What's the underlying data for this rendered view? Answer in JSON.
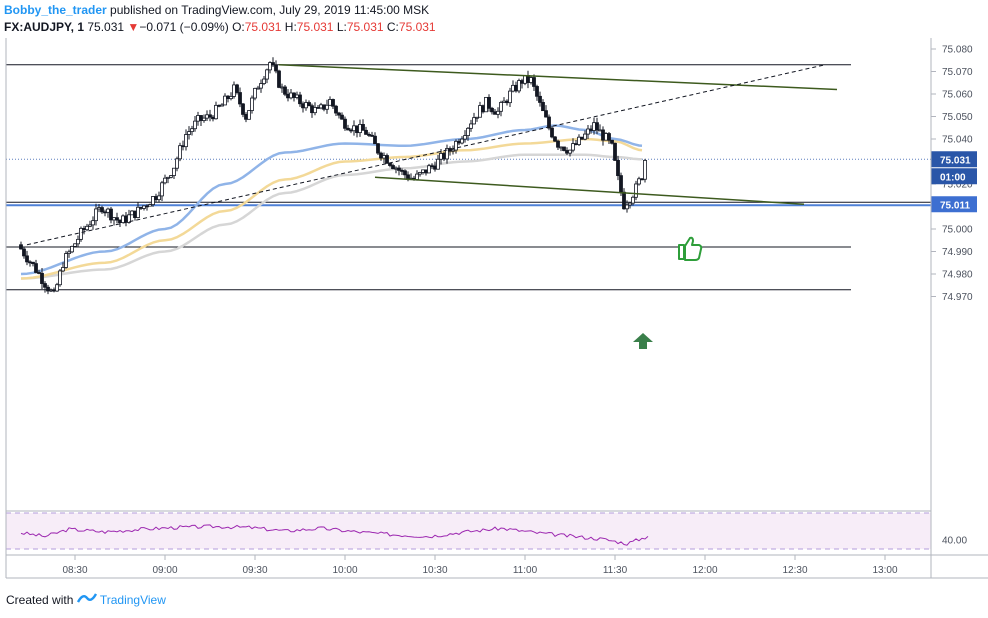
{
  "header": {
    "author": "Bobby_the_trader",
    "published_text": "published on TradingView.com, July 29, 2019 11:45:00 MSK",
    "symbol": "FX:AUDJPY, 1",
    "last_price": "75.031",
    "down_arrow": "▼",
    "change": "−0.071 (−0.09%)",
    "o_label": "O:",
    "o_value": "75.031",
    "h_label": "H:",
    "h_value": "75.031",
    "l_label": "L:",
    "l_value": "75.031",
    "c_label": "C:",
    "c_value": "75.031"
  },
  "footer": {
    "created_with": "Created with",
    "brand": "TradingView"
  },
  "colors": {
    "up_candle": "#ffffff",
    "down_candle": "#131722",
    "channel": "#3d5a1e",
    "ma_blue": "#90b4e8",
    "ma_yellow": "#f3d998",
    "ma_gray": "#d6d6d6",
    "support": "#4f81d8",
    "rsi": "#9c27b0",
    "rsi_bg": "#f3e5f5",
    "arrow": "#3a7f4a",
    "thumb": "#2e9e3a"
  },
  "chart_data": {
    "type": "candlestick",
    "symbol": "FX:AUDJPY",
    "timeframe": "1",
    "x_ticks": [
      "08:30",
      "09:00",
      "09:30",
      "10:00",
      "10:30",
      "11:00",
      "11:30",
      "12:00",
      "12:30",
      "13:00"
    ],
    "y_ticks": [
      "75.080",
      "75.070",
      "75.060",
      "75.050",
      "75.040",
      "75.020",
      "75.010",
      "75.000",
      "74.990",
      "74.980",
      "74.970"
    ],
    "ylim": [
      74.963,
      75.085
    ],
    "price_labels": {
      "current": "75.031",
      "countdown": "01:00",
      "support": "75.011"
    },
    "candle_path": [
      [
        "08:12",
        74.993
      ],
      [
        "08:18",
        74.982
      ],
      [
        "08:24",
        74.97
      ],
      [
        "08:27",
        74.985
      ],
      [
        "08:33",
        74.998
      ],
      [
        "08:40",
        75.01
      ],
      [
        "08:46",
        75.003
      ],
      [
        "08:52",
        75.008
      ],
      [
        "08:58",
        75.015
      ],
      [
        "09:04",
        75.028
      ],
      [
        "09:08",
        75.042
      ],
      [
        "09:12",
        75.048
      ],
      [
        "09:16",
        75.05
      ],
      [
        "09:20",
        75.055
      ],
      [
        "09:24",
        75.062
      ],
      [
        "09:28",
        75.05
      ],
      [
        "09:32",
        75.064
      ],
      [
        "09:36",
        75.074
      ],
      [
        "09:40",
        75.062
      ],
      [
        "09:44",
        75.058
      ],
      [
        "09:48",
        75.055
      ],
      [
        "09:52",
        75.052
      ],
      [
        "09:56",
        75.057
      ],
      [
        "10:00",
        75.048
      ],
      [
        "10:04",
        75.045
      ],
      [
        "10:08",
        75.043
      ],
      [
        "10:12",
        75.035
      ],
      [
        "10:16",
        75.03
      ],
      [
        "10:20",
        75.025
      ],
      [
        "10:24",
        75.022
      ],
      [
        "10:28",
        75.026
      ],
      [
        "10:32",
        75.03
      ],
      [
        "10:36",
        75.035
      ],
      [
        "10:40",
        75.042
      ],
      [
        "10:44",
        75.05
      ],
      [
        "10:48",
        75.056
      ],
      [
        "10:52",
        75.052
      ],
      [
        "10:56",
        75.06
      ],
      [
        "11:00",
        75.066
      ],
      [
        "11:03",
        75.066
      ],
      [
        "11:06",
        75.055
      ],
      [
        "11:09",
        75.045
      ],
      [
        "11:12",
        75.038
      ],
      [
        "11:16",
        75.035
      ],
      [
        "11:20",
        75.04
      ],
      [
        "11:24",
        75.046
      ],
      [
        "11:28",
        75.04
      ],
      [
        "11:30",
        75.036
      ],
      [
        "11:32",
        75.022
      ],
      [
        "11:34",
        75.011
      ],
      [
        "11:36",
        75.014
      ],
      [
        "11:38",
        75.018
      ],
      [
        "11:40",
        75.024
      ],
      [
        "11:41",
        75.031
      ]
    ],
    "ma_blue": [
      [
        "08:12",
        74.98
      ],
      [
        "08:40",
        74.99
      ],
      [
        "09:00",
        75.0
      ],
      [
        "09:20",
        75.02
      ],
      [
        "09:40",
        75.034
      ],
      [
        "10:00",
        75.038
      ],
      [
        "10:20",
        75.037
      ],
      [
        "10:40",
        75.04
      ],
      [
        "11:00",
        75.044
      ],
      [
        "11:10",
        75.046
      ],
      [
        "11:20",
        75.044
      ],
      [
        "11:30",
        75.04
      ],
      [
        "11:39",
        75.037
      ]
    ],
    "ma_yellow": [
      [
        "08:12",
        74.978
      ],
      [
        "08:40",
        74.985
      ],
      [
        "09:00",
        74.995
      ],
      [
        "09:20",
        75.008
      ],
      [
        "09:40",
        75.022
      ],
      [
        "10:00",
        75.03
      ],
      [
        "10:20",
        75.032
      ],
      [
        "10:40",
        75.035
      ],
      [
        "11:00",
        75.038
      ],
      [
        "11:20",
        75.04
      ],
      [
        "11:30",
        75.039
      ],
      [
        "11:39",
        75.035
      ]
    ],
    "ma_gray": [
      [
        "08:12",
        74.978
      ],
      [
        "08:40",
        74.982
      ],
      [
        "09:00",
        74.99
      ],
      [
        "09:20",
        75.002
      ],
      [
        "09:40",
        75.016
      ],
      [
        "10:00",
        75.024
      ],
      [
        "10:20",
        75.027
      ],
      [
        "10:40",
        75.03
      ],
      [
        "11:00",
        75.033
      ],
      [
        "11:20",
        75.033
      ],
      [
        "11:30",
        75.032
      ],
      [
        "11:39",
        75.031
      ]
    ],
    "rsi_path": [
      [
        "08:12",
        48
      ],
      [
        "08:20",
        44
      ],
      [
        "08:28",
        52
      ],
      [
        "08:40",
        49
      ],
      [
        "08:52",
        52
      ],
      [
        "09:04",
        54
      ],
      [
        "09:16",
        55
      ],
      [
        "09:28",
        54
      ],
      [
        "09:40",
        50
      ],
      [
        "09:52",
        53
      ],
      [
        "10:04",
        49
      ],
      [
        "10:16",
        46
      ],
      [
        "10:28",
        44
      ],
      [
        "10:40",
        49
      ],
      [
        "10:52",
        53
      ],
      [
        "11:04",
        48
      ],
      [
        "11:16",
        44
      ],
      [
        "11:26",
        41
      ],
      [
        "11:34",
        36
      ],
      [
        "11:41",
        44
      ]
    ],
    "rsi_tick": "40.00",
    "horizontal_lines": [
      75.073,
      74.992,
      74.973,
      75.011
    ],
    "channel_upper": [
      [
        "09:38",
        75.073
      ],
      [
        "12:44",
        75.062
      ]
    ],
    "channel_lower": [
      [
        "10:10",
        75.023
      ],
      [
        "12:33",
        75.011
      ]
    ],
    "dashed_trend": [
      [
        "08:14",
        74.993
      ],
      [
        "12:40",
        75.073
      ]
    ]
  }
}
